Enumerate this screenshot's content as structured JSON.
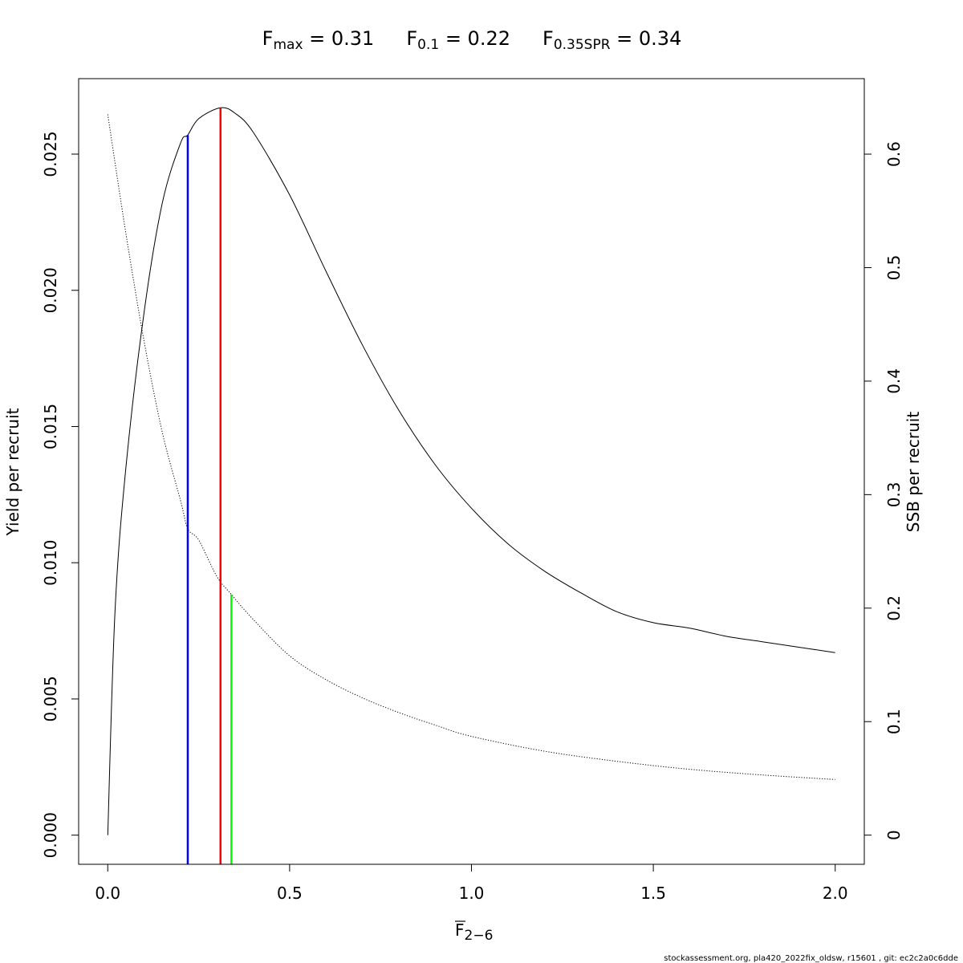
{
  "chart_data": {
    "type": "line",
    "title_items": [
      {
        "symbol": "F",
        "subscript": "max",
        "value_text": " = 0.31"
      },
      {
        "symbol": "F",
        "subscript": "0.1",
        "value_text": " = 0.22"
      },
      {
        "symbol": "F",
        "subscript": "0.35SPR",
        "value_text": " = 0.34"
      }
    ],
    "xlabel": {
      "symbol": "F",
      "subscript": "2−6",
      "overline": true
    },
    "ylabel_left": "Yield per recruit",
    "ylabel_right": "SSB per recruit",
    "xlim": [
      -0.08,
      2.08
    ],
    "ylim_left": [
      -0.00107,
      0.02777
    ],
    "ylim_right": [
      -0.0257,
      0.6665
    ],
    "x_ticks": [
      0.0,
      0.5,
      1.0,
      1.5,
      2.0
    ],
    "x_tick_labels": [
      "0.0",
      "0.5",
      "1.0",
      "1.5",
      "2.0"
    ],
    "y_left_ticks": [
      0.0,
      0.005,
      0.01,
      0.015,
      0.02,
      0.025
    ],
    "y_left_tick_labels": [
      "0.000",
      "0.005",
      "0.010",
      "0.015",
      "0.020",
      "0.025"
    ],
    "y_right_ticks": [
      0,
      0.1,
      0.2,
      0.3,
      0.4,
      0.5,
      0.6
    ],
    "y_right_tick_labels": [
      "0",
      "0.1",
      "0.2",
      "0.3",
      "0.4",
      "0.5",
      "0.6"
    ],
    "series": [
      {
        "axis": "left",
        "style": "solid",
        "color": "#000000",
        "x": [
          0.0,
          0.02,
          0.05,
          0.1,
          0.15,
          0.2,
          0.22,
          0.25,
          0.31,
          0.35,
          0.4,
          0.5,
          0.6,
          0.7,
          0.8,
          0.9,
          1.0,
          1.1,
          1.2,
          1.3,
          1.4,
          1.5,
          1.6,
          1.7,
          1.8,
          1.9,
          2.0
        ],
        "y": [
          0.0,
          0.0082,
          0.0135,
          0.0192,
          0.0232,
          0.0254,
          0.0257,
          0.0263,
          0.0267,
          0.0265,
          0.0258,
          0.0235,
          0.0207,
          0.018,
          0.0156,
          0.0136,
          0.012,
          0.0107,
          0.0097,
          0.0089,
          0.0082,
          0.0078,
          0.0076,
          0.0073,
          0.0071,
          0.0069,
          0.0067
        ]
      },
      {
        "axis": "right",
        "style": "dotted",
        "color": "#000000",
        "x": [
          0.0,
          0.05,
          0.1,
          0.15,
          0.2,
          0.22,
          0.25,
          0.3,
          0.34,
          0.4,
          0.5,
          0.6,
          0.7,
          0.8,
          0.9,
          1.0,
          1.2,
          1.4,
          1.6,
          1.8,
          2.0
        ],
        "y": [
          0.635,
          0.53,
          0.435,
          0.355,
          0.295,
          0.27,
          0.26,
          0.228,
          0.212,
          0.19,
          0.158,
          0.137,
          0.121,
          0.108,
          0.097,
          0.087,
          0.074,
          0.065,
          0.058,
          0.053,
          0.049
        ]
      }
    ],
    "reference_lines": [
      {
        "name": "F0.1",
        "x": 0.22,
        "axis": "left",
        "y_top": 0.0257,
        "color": "#0000ff"
      },
      {
        "name": "Fmax",
        "x": 0.31,
        "axis": "left",
        "y_top": 0.0267,
        "color": "#ff0000"
      },
      {
        "name": "F0.35SPR",
        "x": 0.34,
        "axis": "right",
        "y_top": 0.212,
        "color": "#00ff00"
      }
    ],
    "grid": false
  },
  "footer": "stockassessment.org, pla420_2022fix_oldsw, r15601 , git: ec2c2a0c6dde"
}
